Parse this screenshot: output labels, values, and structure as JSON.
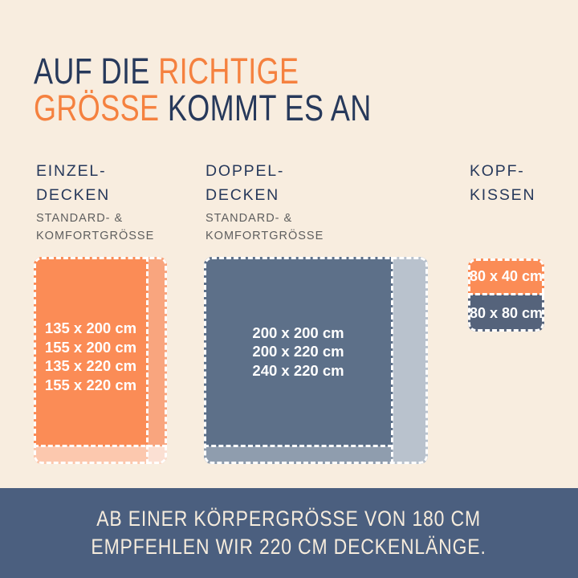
{
  "title": {
    "line1_dark": "AUF DIE ",
    "line1_accent": "RICHTIGE",
    "line2_accent": "GRÖSSE ",
    "line2_dark": "KOMMT ES AN"
  },
  "columns": [
    {
      "id": "einzeldecken",
      "heading_lines": [
        "EINZEL-",
        "DECKEN"
      ],
      "subtitle_lines": [
        "STANDARD- &",
        "KOMFORTGRÖSSE"
      ],
      "sizes": [
        "135 x 200 cm",
        "155 x 200 cm",
        "135 x 220 cm",
        "155 x 220 cm"
      ]
    },
    {
      "id": "doppeldecken",
      "heading_lines": [
        "DOPPEL-",
        "DECKEN"
      ],
      "subtitle_lines": [
        "STANDARD- &",
        "KOMFORTGRÖSSE"
      ],
      "sizes": [
        "200 x 200 cm",
        "200 x 220 cm",
        "240 x 220 cm"
      ]
    },
    {
      "id": "kopfkissen",
      "heading_lines": [
        "KOPF-",
        "KISSEN"
      ],
      "pillows": [
        {
          "label": "80 x 40 cm"
        },
        {
          "label": "80 x 80 cm"
        }
      ]
    }
  ],
  "footer": {
    "line1": "AB EINER KÖRPERGRÖSSE VON 180 CM",
    "line2": "EMPFEHLEN WIR 220 CM DECKENLÄNGE."
  },
  "colors": {
    "bg": "#F8EDDF",
    "navy": "#27395B",
    "accent": "#F5813F",
    "gray": "#5E5E5E",
    "orangeMain": "#FB8C56",
    "orangeStrip": "#F9A57E",
    "orangeStripBottom": "#FCC8AE",
    "orangeCorner": "#FBE0D3",
    "blueMain": "#5D7089",
    "blueStrip": "#B9C2CD",
    "blueStripBottom": "#8F9DAE",
    "pillowBlue": "#55637B",
    "banner": "#4B5F7F",
    "creamText": "#F6ECDD",
    "dash": "#FFFFFF"
  }
}
